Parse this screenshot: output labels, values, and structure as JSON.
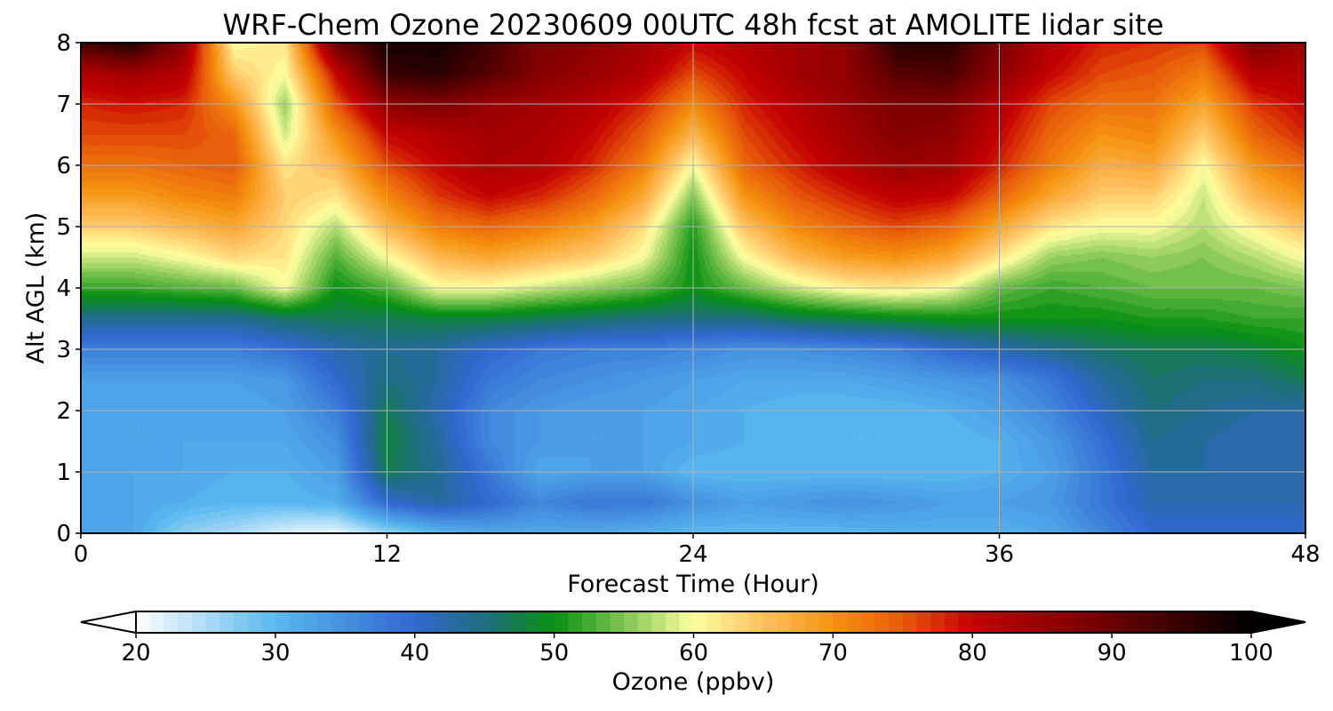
{
  "chart_data": {
    "type": "heatmap",
    "title": "WRF-Chem Ozone  20230609 00UTC 48h fcst at AMOLITE lidar site",
    "xlabel": "Forecast Time (Hour)",
    "ylabel": "Alt AGL (km)",
    "xlim": [
      0,
      48
    ],
    "ylim": [
      0,
      8
    ],
    "xticks": [
      0,
      12,
      24,
      36,
      48
    ],
    "yticks": [
      0,
      1,
      2,
      3,
      4,
      5,
      6,
      7,
      8
    ],
    "grid": true,
    "colorbar": {
      "label": "Ozone  (ppbv)",
      "range": [
        20,
        100
      ],
      "ticks": [
        20,
        30,
        40,
        50,
        60,
        70,
        80,
        90,
        100
      ],
      "extend": "both",
      "levels": 80,
      "stops": [
        {
          "value": 20,
          "color": "#ffffff"
        },
        {
          "value": 30,
          "color": "#58b8f0"
        },
        {
          "value": 40,
          "color": "#3168d0"
        },
        {
          "value": 45,
          "color": "#1e6e80"
        },
        {
          "value": 50,
          "color": "#079010"
        },
        {
          "value": 56,
          "color": "#98d060"
        },
        {
          "value": 60,
          "color": "#ffffa0"
        },
        {
          "value": 65,
          "color": "#ffc060"
        },
        {
          "value": 70,
          "color": "#f59310"
        },
        {
          "value": 75,
          "color": "#e85a0a"
        },
        {
          "value": 80,
          "color": "#c40000"
        },
        {
          "value": 90,
          "color": "#6a0000"
        },
        {
          "value": 100,
          "color": "#000000"
        }
      ]
    },
    "x_hours": [
      0,
      2,
      4,
      6,
      8,
      10,
      12,
      14,
      16,
      18,
      20,
      22,
      24,
      26,
      28,
      30,
      32,
      34,
      36,
      38,
      40,
      42,
      44,
      46,
      48
    ],
    "altitudes_km": [
      0,
      0.5,
      1,
      1.5,
      2,
      2.5,
      3,
      3.5,
      4,
      4.5,
      5,
      5.5,
      6,
      6.5,
      7,
      7.5,
      8
    ],
    "ozone_ppbv": [
      [
        33,
        32,
        27,
        25,
        22,
        21,
        26,
        30,
        32,
        32,
        32,
        31,
        30,
        30,
        30,
        30,
        31,
        31,
        31,
        32,
        36,
        40,
        40,
        40,
        40
      ],
      [
        33,
        32,
        31,
        30,
        30,
        31,
        40,
        43,
        40,
        36,
        38,
        38,
        35,
        33,
        34,
        35,
        34,
        33,
        33,
        34,
        38,
        42,
        42,
        42,
        42
      ],
      [
        33,
        32,
        32,
        31,
        31,
        33,
        47,
        44,
        38,
        32,
        33,
        33,
        30,
        30,
        30,
        30,
        30,
        30,
        31,
        33,
        38,
        43,
        43,
        42,
        42
      ],
      [
        33,
        32,
        32,
        32,
        32,
        35,
        48,
        43,
        36,
        34,
        33,
        33,
        32,
        31,
        30,
        30,
        30,
        30,
        31,
        34,
        39,
        44,
        43,
        42,
        42
      ],
      [
        32,
        32,
        32,
        32,
        33,
        37,
        47,
        42,
        36,
        34,
        33,
        33,
        32,
        31,
        30,
        30,
        30,
        31,
        33,
        36,
        41,
        45,
        44,
        43,
        43
      ],
      [
        33,
        33,
        33,
        33,
        34,
        40,
        45,
        43,
        38,
        36,
        35,
        34,
        33,
        32,
        32,
        32,
        33,
        34,
        35,
        38,
        43,
        46,
        45,
        45,
        47
      ],
      [
        37,
        37,
        37,
        37,
        39,
        42,
        44,
        43,
        40,
        38,
        37,
        37,
        36,
        35,
        35,
        36,
        37,
        40,
        42,
        44,
        46,
        47,
        47,
        48,
        50
      ],
      [
        44,
        44,
        44,
        44,
        46,
        47,
        47,
        48,
        48,
        47,
        46,
        45,
        45,
        45,
        47,
        48,
        49,
        50,
        50,
        50,
        50,
        51,
        51,
        52,
        52
      ],
      [
        52,
        52,
        53,
        54,
        60,
        50,
        53,
        60,
        60,
        58,
        56,
        54,
        50,
        54,
        58,
        61,
        62,
        60,
        54,
        52,
        53,
        54,
        54,
        54,
        55
      ],
      [
        58,
        58,
        60,
        63,
        62,
        53,
        60,
        66,
        68,
        66,
        64,
        60,
        50,
        60,
        66,
        69,
        70,
        68,
        62,
        56,
        55,
        56,
        55,
        57,
        60
      ],
      [
        64,
        64,
        66,
        68,
        63,
        57,
        66,
        72,
        74,
        72,
        69,
        63,
        51,
        65,
        71,
        74,
        76,
        74,
        68,
        62,
        60,
        60,
        57,
        61,
        65
      ],
      [
        69,
        69,
        71,
        72,
        64,
        62,
        71,
        77,
        80,
        78,
        74,
        68,
        55,
        70,
        75,
        78,
        81,
        80,
        74,
        68,
        64,
        64,
        58,
        66,
        70
      ],
      [
        73,
        73,
        74,
        75,
        62,
        66,
        76,
        80,
        83,
        82,
        78,
        72,
        60,
        74,
        78,
        82,
        85,
        84,
        78,
        72,
        67,
        68,
        60,
        70,
        74
      ],
      [
        76,
        76,
        76,
        74,
        58,
        70,
        80,
        82,
        84,
        83,
        80,
        75,
        66,
        76,
        80,
        84,
        87,
        86,
        80,
        74,
        70,
        71,
        64,
        74,
        78
      ],
      [
        78,
        79,
        78,
        70,
        56,
        75,
        86,
        88,
        85,
        84,
        82,
        78,
        71,
        78,
        82,
        85,
        88,
        88,
        82,
        76,
        73,
        73,
        68,
        77,
        80
      ],
      [
        82,
        84,
        82,
        64,
        60,
        80,
        95,
        96,
        92,
        87,
        85,
        82,
        76,
        80,
        84,
        86,
        92,
        93,
        86,
        80,
        76,
        75,
        72,
        82,
        82
      ],
      [
        94,
        97,
        86,
        60,
        62,
        90,
        98,
        98,
        94,
        88,
        86,
        84,
        80,
        82,
        84,
        86,
        96,
        96,
        88,
        82,
        78,
        77,
        76,
        88,
        84
      ]
    ]
  }
}
